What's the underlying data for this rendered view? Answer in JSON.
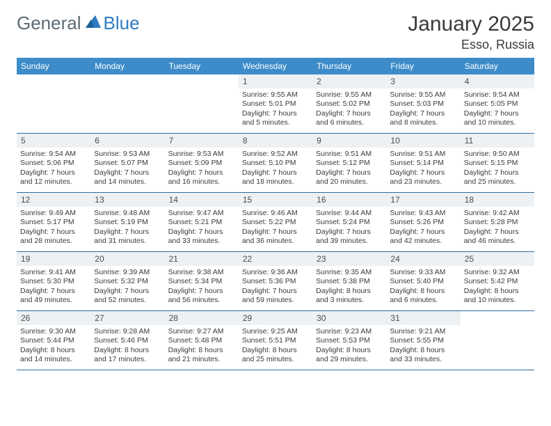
{
  "brand": {
    "general": "General",
    "blue": "Blue"
  },
  "title": "January 2025",
  "location": "Esso, Russia",
  "colors": {
    "header_bg": "#3d8cc9",
    "header_fg": "#ffffff",
    "daynum_bg": "#eef1f3",
    "rule": "#2d6aa0",
    "brand_gray": "#5b6a74",
    "brand_blue": "#2e7cc0"
  },
  "dayNames": [
    "Sunday",
    "Monday",
    "Tuesday",
    "Wednesday",
    "Thursday",
    "Friday",
    "Saturday"
  ],
  "weeks": [
    [
      {
        "n": "",
        "sr": "",
        "ss": "",
        "dl": ""
      },
      {
        "n": "",
        "sr": "",
        "ss": "",
        "dl": ""
      },
      {
        "n": "",
        "sr": "",
        "ss": "",
        "dl": ""
      },
      {
        "n": "1",
        "sr": "Sunrise: 9:55 AM",
        "ss": "Sunset: 5:01 PM",
        "dl": "Daylight: 7 hours and 5 minutes."
      },
      {
        "n": "2",
        "sr": "Sunrise: 9:55 AM",
        "ss": "Sunset: 5:02 PM",
        "dl": "Daylight: 7 hours and 6 minutes."
      },
      {
        "n": "3",
        "sr": "Sunrise: 9:55 AM",
        "ss": "Sunset: 5:03 PM",
        "dl": "Daylight: 7 hours and 8 minutes."
      },
      {
        "n": "4",
        "sr": "Sunrise: 9:54 AM",
        "ss": "Sunset: 5:05 PM",
        "dl": "Daylight: 7 hours and 10 minutes."
      }
    ],
    [
      {
        "n": "5",
        "sr": "Sunrise: 9:54 AM",
        "ss": "Sunset: 5:06 PM",
        "dl": "Daylight: 7 hours and 12 minutes."
      },
      {
        "n": "6",
        "sr": "Sunrise: 9:53 AM",
        "ss": "Sunset: 5:07 PM",
        "dl": "Daylight: 7 hours and 14 minutes."
      },
      {
        "n": "7",
        "sr": "Sunrise: 9:53 AM",
        "ss": "Sunset: 5:09 PM",
        "dl": "Daylight: 7 hours and 16 minutes."
      },
      {
        "n": "8",
        "sr": "Sunrise: 9:52 AM",
        "ss": "Sunset: 5:10 PM",
        "dl": "Daylight: 7 hours and 18 minutes."
      },
      {
        "n": "9",
        "sr": "Sunrise: 9:51 AM",
        "ss": "Sunset: 5:12 PM",
        "dl": "Daylight: 7 hours and 20 minutes."
      },
      {
        "n": "10",
        "sr": "Sunrise: 9:51 AM",
        "ss": "Sunset: 5:14 PM",
        "dl": "Daylight: 7 hours and 23 minutes."
      },
      {
        "n": "11",
        "sr": "Sunrise: 9:50 AM",
        "ss": "Sunset: 5:15 PM",
        "dl": "Daylight: 7 hours and 25 minutes."
      }
    ],
    [
      {
        "n": "12",
        "sr": "Sunrise: 9:49 AM",
        "ss": "Sunset: 5:17 PM",
        "dl": "Daylight: 7 hours and 28 minutes."
      },
      {
        "n": "13",
        "sr": "Sunrise: 9:48 AM",
        "ss": "Sunset: 5:19 PM",
        "dl": "Daylight: 7 hours and 31 minutes."
      },
      {
        "n": "14",
        "sr": "Sunrise: 9:47 AM",
        "ss": "Sunset: 5:21 PM",
        "dl": "Daylight: 7 hours and 33 minutes."
      },
      {
        "n": "15",
        "sr": "Sunrise: 9:46 AM",
        "ss": "Sunset: 5:22 PM",
        "dl": "Daylight: 7 hours and 36 minutes."
      },
      {
        "n": "16",
        "sr": "Sunrise: 9:44 AM",
        "ss": "Sunset: 5:24 PM",
        "dl": "Daylight: 7 hours and 39 minutes."
      },
      {
        "n": "17",
        "sr": "Sunrise: 9:43 AM",
        "ss": "Sunset: 5:26 PM",
        "dl": "Daylight: 7 hours and 42 minutes."
      },
      {
        "n": "18",
        "sr": "Sunrise: 9:42 AM",
        "ss": "Sunset: 5:28 PM",
        "dl": "Daylight: 7 hours and 46 minutes."
      }
    ],
    [
      {
        "n": "19",
        "sr": "Sunrise: 9:41 AM",
        "ss": "Sunset: 5:30 PM",
        "dl": "Daylight: 7 hours and 49 minutes."
      },
      {
        "n": "20",
        "sr": "Sunrise: 9:39 AM",
        "ss": "Sunset: 5:32 PM",
        "dl": "Daylight: 7 hours and 52 minutes."
      },
      {
        "n": "21",
        "sr": "Sunrise: 9:38 AM",
        "ss": "Sunset: 5:34 PM",
        "dl": "Daylight: 7 hours and 56 minutes."
      },
      {
        "n": "22",
        "sr": "Sunrise: 9:36 AM",
        "ss": "Sunset: 5:36 PM",
        "dl": "Daylight: 7 hours and 59 minutes."
      },
      {
        "n": "23",
        "sr": "Sunrise: 9:35 AM",
        "ss": "Sunset: 5:38 PM",
        "dl": "Daylight: 8 hours and 3 minutes."
      },
      {
        "n": "24",
        "sr": "Sunrise: 9:33 AM",
        "ss": "Sunset: 5:40 PM",
        "dl": "Daylight: 8 hours and 6 minutes."
      },
      {
        "n": "25",
        "sr": "Sunrise: 9:32 AM",
        "ss": "Sunset: 5:42 PM",
        "dl": "Daylight: 8 hours and 10 minutes."
      }
    ],
    [
      {
        "n": "26",
        "sr": "Sunrise: 9:30 AM",
        "ss": "Sunset: 5:44 PM",
        "dl": "Daylight: 8 hours and 14 minutes."
      },
      {
        "n": "27",
        "sr": "Sunrise: 9:28 AM",
        "ss": "Sunset: 5:46 PM",
        "dl": "Daylight: 8 hours and 17 minutes."
      },
      {
        "n": "28",
        "sr": "Sunrise: 9:27 AM",
        "ss": "Sunset: 5:48 PM",
        "dl": "Daylight: 8 hours and 21 minutes."
      },
      {
        "n": "29",
        "sr": "Sunrise: 9:25 AM",
        "ss": "Sunset: 5:51 PM",
        "dl": "Daylight: 8 hours and 25 minutes."
      },
      {
        "n": "30",
        "sr": "Sunrise: 9:23 AM",
        "ss": "Sunset: 5:53 PM",
        "dl": "Daylight: 8 hours and 29 minutes."
      },
      {
        "n": "31",
        "sr": "Sunrise: 9:21 AM",
        "ss": "Sunset: 5:55 PM",
        "dl": "Daylight: 8 hours and 33 minutes."
      },
      {
        "n": "",
        "sr": "",
        "ss": "",
        "dl": ""
      }
    ]
  ]
}
